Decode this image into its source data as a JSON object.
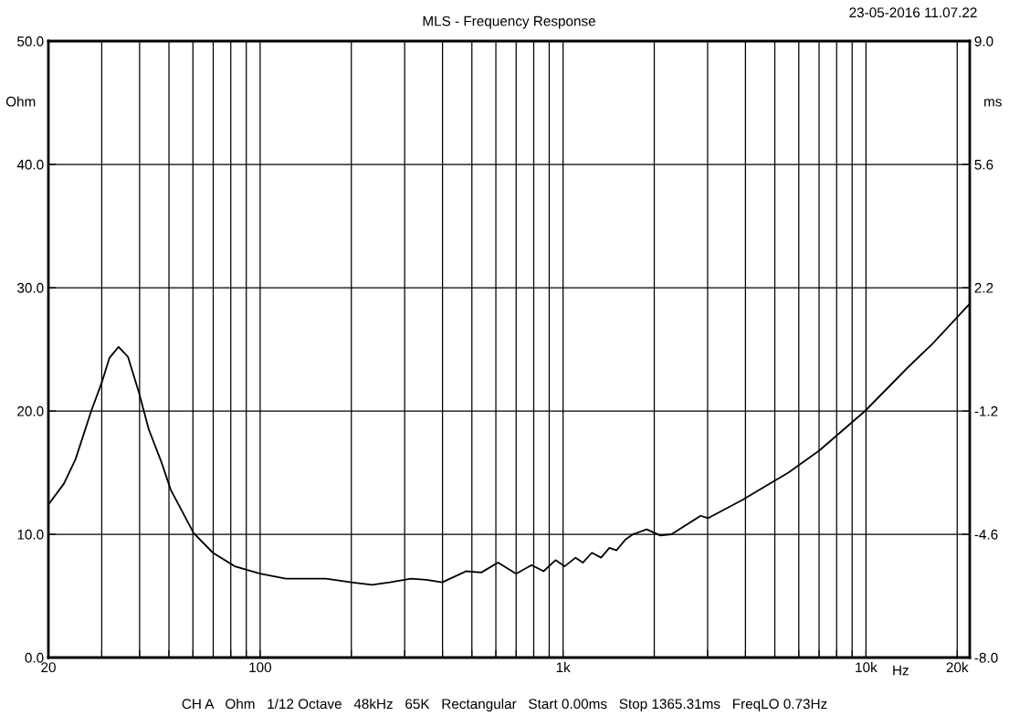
{
  "chart_data": {
    "type": "line",
    "title": "MLS - Frequency Response",
    "ylabel": "Ohm",
    "y2label": "ms",
    "xlabel": "Hz",
    "annotations": [
      "23-05-2016 11.07.22",
      "CH A   Ohm   1/12 Octave   48kHz   65K   Rectangular   Start 0.00ms   Stop 1365.31ms   FreqLO 0.73Hz"
    ],
    "log": "x",
    "grid": true,
    "marker": "none",
    "line_style": "solid",
    "xlim": [
      20,
      22000
    ],
    "ylim": [
      0,
      50
    ],
    "y2lim": [
      -8,
      9
    ],
    "xticks": [
      20,
      {
        "value": 30,
        "label": null
      },
      {
        "value": 40,
        "label": null
      },
      {
        "value": 50,
        "label": null
      },
      {
        "value": 60,
        "label": null
      },
      {
        "value": 70,
        "label": null
      },
      {
        "value": 80,
        "label": null
      },
      {
        "value": 90,
        "label": null
      },
      100,
      {
        "value": 200,
        "label": null
      },
      {
        "value": 300,
        "label": null
      },
      {
        "value": 400,
        "label": null
      },
      {
        "value": 500,
        "label": null
      },
      {
        "value": 600,
        "label": null
      },
      {
        "value": 700,
        "label": null
      },
      {
        "value": 800,
        "label": null
      },
      {
        "value": 900,
        "label": null
      },
      {
        "value": 1000,
        "label": "1k"
      },
      {
        "value": 2000,
        "label": null
      },
      {
        "value": 3000,
        "label": null
      },
      {
        "value": 4000,
        "label": null
      },
      {
        "value": 5000,
        "label": null
      },
      {
        "value": 6000,
        "label": null
      },
      {
        "value": 7000,
        "label": null
      },
      {
        "value": 8000,
        "label": null
      },
      {
        "value": 9000,
        "label": null
      },
      {
        "value": 10000,
        "label": "10k"
      },
      {
        "value": 20000,
        "label": "20k"
      }
    ],
    "yticks": [
      {
        "value": 0,
        "label": "0.0"
      },
      {
        "value": 10,
        "label": "10.0"
      },
      {
        "value": 20,
        "label": "20.0"
      },
      {
        "value": 30,
        "label": "30.0"
      },
      {
        "value": 40,
        "label": "40.0"
      },
      {
        "value": 50,
        "label": "50.0"
      }
    ],
    "y2ticks": [
      {
        "value": -8,
        "label": "-8.0"
      },
      {
        "value": -4.6,
        "label": "-4.6"
      },
      {
        "value": -1.2,
        "label": "-1.2"
      },
      {
        "value": 2.2,
        "label": "2.2"
      },
      {
        "value": 5.6,
        "label": "5.6"
      },
      {
        "value": 9,
        "label": "9.0"
      }
    ],
    "series": [
      {
        "color": "#000000",
        "x": [
          20,
          22.5,
          24.6,
          27.7,
          30.1,
          31.8,
          34.1,
          36.6,
          39.8,
          42.9,
          47.3,
          50.7,
          60.3,
          69.8,
          82.5,
          100,
          121.6,
          146.7,
          165,
          200,
          234,
          268,
          315,
          354,
          399,
          478,
          537,
          610,
          700,
          787,
          862,
          944,
          1011,
          1100,
          1162,
          1245,
          1335,
          1422,
          1502,
          1610,
          1702,
          1888,
          2095,
          2279,
          2845,
          3007,
          3915,
          4958,
          5545,
          7019,
          9930,
          11400,
          13700,
          16500,
          20000,
          22000
        ],
        "values": [
          12.4,
          14.1,
          16.1,
          20.0,
          22.4,
          24.3,
          25.2,
          24.4,
          21.5,
          18.5,
          15.8,
          13.6,
          10.1,
          8.5,
          7.4,
          6.8,
          6.4,
          6.4,
          6.4,
          6.1,
          5.9,
          6.1,
          6.4,
          6.3,
          6.1,
          7.0,
          6.9,
          7.7,
          6.8,
          7.5,
          7.0,
          7.9,
          7.4,
          8.1,
          7.7,
          8.5,
          8.1,
          8.9,
          8.7,
          9.6,
          10.0,
          10.4,
          9.9,
          10.0,
          11.5,
          11.3,
          12.8,
          14.3,
          15.0,
          16.8,
          20.0,
          21.5,
          23.5,
          25.4,
          27.6,
          28.7
        ]
      }
    ]
  }
}
